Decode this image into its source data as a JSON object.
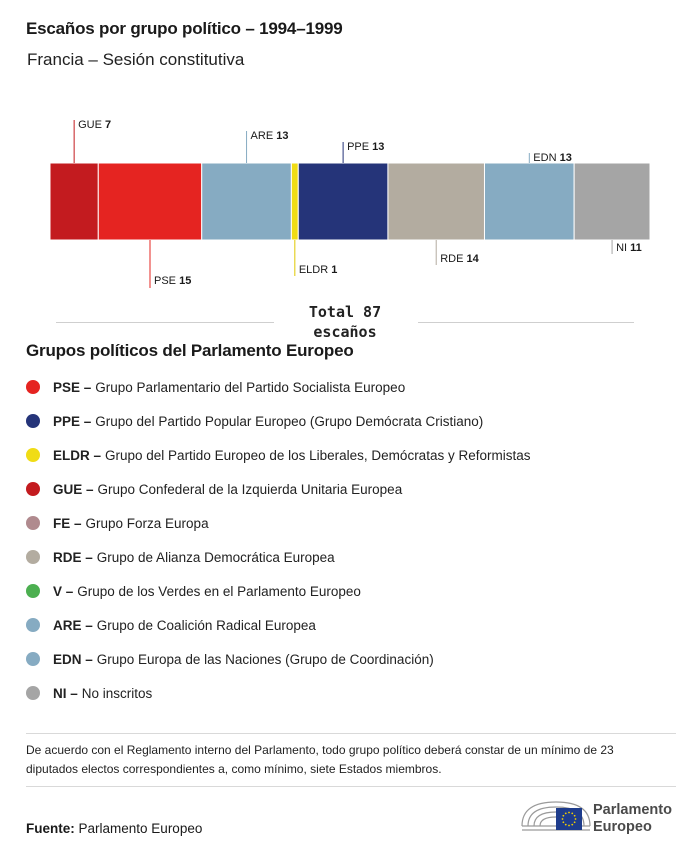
{
  "header": {
    "title": "Escaños por grupo político – 1994–1999",
    "subtitle": "Francia – Sesión constitutiva"
  },
  "chart_data": {
    "type": "bar",
    "orientation": "horizontal-stacked",
    "categories": [
      "GUE",
      "PSE",
      "ARE",
      "ELDR",
      "PPE",
      "RDE",
      "EDN",
      "NI"
    ],
    "values": [
      7,
      15,
      13,
      1,
      13,
      14,
      13,
      11
    ],
    "colors": [
      "#c31b1f",
      "#e52421",
      "#86abc2",
      "#f0dc15",
      "#253479",
      "#b3aca0",
      "#86abc2",
      "#a5a5a5"
    ],
    "label_positions": [
      "above",
      "below",
      "above",
      "below",
      "above",
      "below",
      "above",
      "below"
    ],
    "total_label": "Total 87",
    "total_unit": "escaños"
  },
  "legend": {
    "title": "Grupos políticos del Parlamento Europeo",
    "items": [
      {
        "code": "PSE –",
        "name": "Grupo Parlamentario del Partido Socialista Europeo",
        "color": "#e52421"
      },
      {
        "code": "PPE –",
        "name": "Grupo del Partido Popular Europeo (Grupo Demócrata Cristiano)",
        "color": "#253479"
      },
      {
        "code": "ELDR –",
        "name": "Grupo del Partido Europeo de los Liberales, Demócratas y Reformistas",
        "color": "#f0dc15"
      },
      {
        "code": "GUE –",
        "name": "Grupo Confederal de la Izquierda Unitaria Europea",
        "color": "#c31b1f"
      },
      {
        "code": "FE –",
        "name": "Grupo Forza Europa",
        "color": "#b08a8e"
      },
      {
        "code": "RDE –",
        "name": "Grupo de Alianza Democrática Europea",
        "color": "#b3aca0"
      },
      {
        "code": "V –",
        "name": "Grupo de los Verdes en el Parlamento Europeo",
        "color": "#4caf50"
      },
      {
        "code": "ARE –",
        "name": "Grupo de Coalición Radical Europea",
        "color": "#86abc2"
      },
      {
        "code": "EDN –",
        "name": "Grupo Europa de las Naciones (Grupo de Coordinación)",
        "color": "#86abc2"
      },
      {
        "code": "NI –",
        "name": "No inscritos",
        "color": "#a5a5a5"
      }
    ]
  },
  "footer": {
    "note": "De acuerdo con el Reglamento interno del Parlamento, todo grupo político deberá constar de un mínimo de 23 diputados electos correspondientes a, como mínimo, siete Estados miembros.",
    "source_label": "Fuente:",
    "source_value": "Parlamento Europeo",
    "logo_line1": "Parlamento",
    "logo_line2": "Europeo"
  }
}
